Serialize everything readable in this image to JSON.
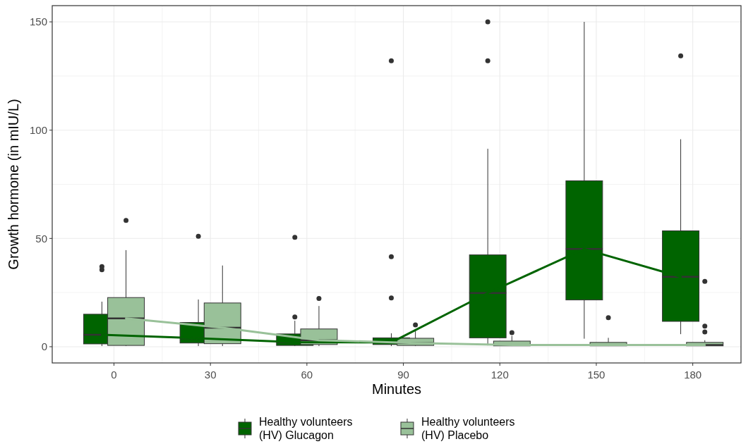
{
  "chart_data": {
    "type": "box",
    "xlabel": "Minutes",
    "ylabel": "Growth hormone (in mIU/L)",
    "categories": [
      "0",
      "30",
      "60",
      "90",
      "120",
      "150",
      "180"
    ],
    "ylim": [
      -7.5,
      157.5
    ],
    "yticks": [
      0,
      50,
      100,
      150
    ],
    "grid": true,
    "legend": "bottom",
    "series": [
      {
        "name": "Healthy volunteers (HV) Glucagon",
        "color": "#006400",
        "boxes": [
          {
            "low": 0.3,
            "q1": 1.3,
            "median": 5.5,
            "q3": 15,
            "high": 20.8,
            "outliers": [
              35.5,
              37
            ]
          },
          {
            "low": 0.3,
            "q1": 1.7,
            "median": 3.9,
            "q3": 11.2,
            "high": 21.8,
            "outliers": [
              51
            ]
          },
          {
            "low": 0.3,
            "q1": 0.6,
            "median": 2.1,
            "q3": 5.9,
            "high": 12,
            "outliers": [
              13.7,
              50.5
            ]
          },
          {
            "low": 0.3,
            "q1": 1,
            "median": 2,
            "q3": 4.1,
            "high": 6.2,
            "outliers": [
              22.5,
              41.6,
              132
            ]
          },
          {
            "low": 0.6,
            "q1": 4.1,
            "median": 24.8,
            "q3": 42.4,
            "high": 91.4,
            "outliers": [
              132,
              150
            ]
          },
          {
            "low": 3.7,
            "q1": 21.6,
            "median": 45.1,
            "q3": 76.6,
            "high": 150
          },
          {
            "low": 5.8,
            "q1": 11.7,
            "median": 32.3,
            "q3": 53.5,
            "high": 95.8,
            "outliers": [
              134.3
            ]
          }
        ]
      },
      {
        "name": "Healthy volunteers (HV) Placebo",
        "color": "#99c199",
        "boxes": [
          {
            "low": 0.3,
            "q1": 0.6,
            "median": 13.1,
            "q3": 22.7,
            "high": 44.6,
            "outliers": [
              58.3
            ]
          },
          {
            "low": 0.3,
            "q1": 1.4,
            "median": 8.8,
            "q3": 20.2,
            "high": 37.5
          },
          {
            "low": 0.3,
            "q1": 1,
            "median": 3,
            "q3": 8.2,
            "high": 18.8,
            "outliers": [
              22.3
            ]
          },
          {
            "low": 0.3,
            "q1": 0.6,
            "median": 1.7,
            "q3": 3.9,
            "high": 7.4,
            "outliers": [
              10.1
            ]
          },
          {
            "low": 0.3,
            "q1": 0.4,
            "median": 0.8,
            "q3": 2.6,
            "high": 5,
            "outliers": [
              6.5
            ]
          },
          {
            "low": 0.3,
            "q1": 0.4,
            "median": 0.8,
            "q3": 2,
            "high": 4.1,
            "outliers": [
              13.4
            ]
          },
          {
            "low": 0.3,
            "q1": 0.4,
            "median": 0.8,
            "q3": 2,
            "high": 3,
            "outliers": [
              30.2,
              9.5,
              6.8
            ]
          }
        ]
      },
      {
        "type": "line",
        "color": "#006400",
        "x": [
          "0",
          "30",
          "60",
          "90",
          "120",
          "150",
          "180"
        ],
        "values": [
          5.5,
          3.9,
          2.1,
          2,
          24.8,
          45.1,
          32.3
        ]
      },
      {
        "type": "line",
        "color": "#99c199",
        "x": [
          "0",
          "30",
          "60",
          "90",
          "120",
          "150",
          "180"
        ],
        "values": [
          13.1,
          8.8,
          3,
          1.7,
          0.8,
          0.8,
          0.8
        ]
      }
    ]
  }
}
